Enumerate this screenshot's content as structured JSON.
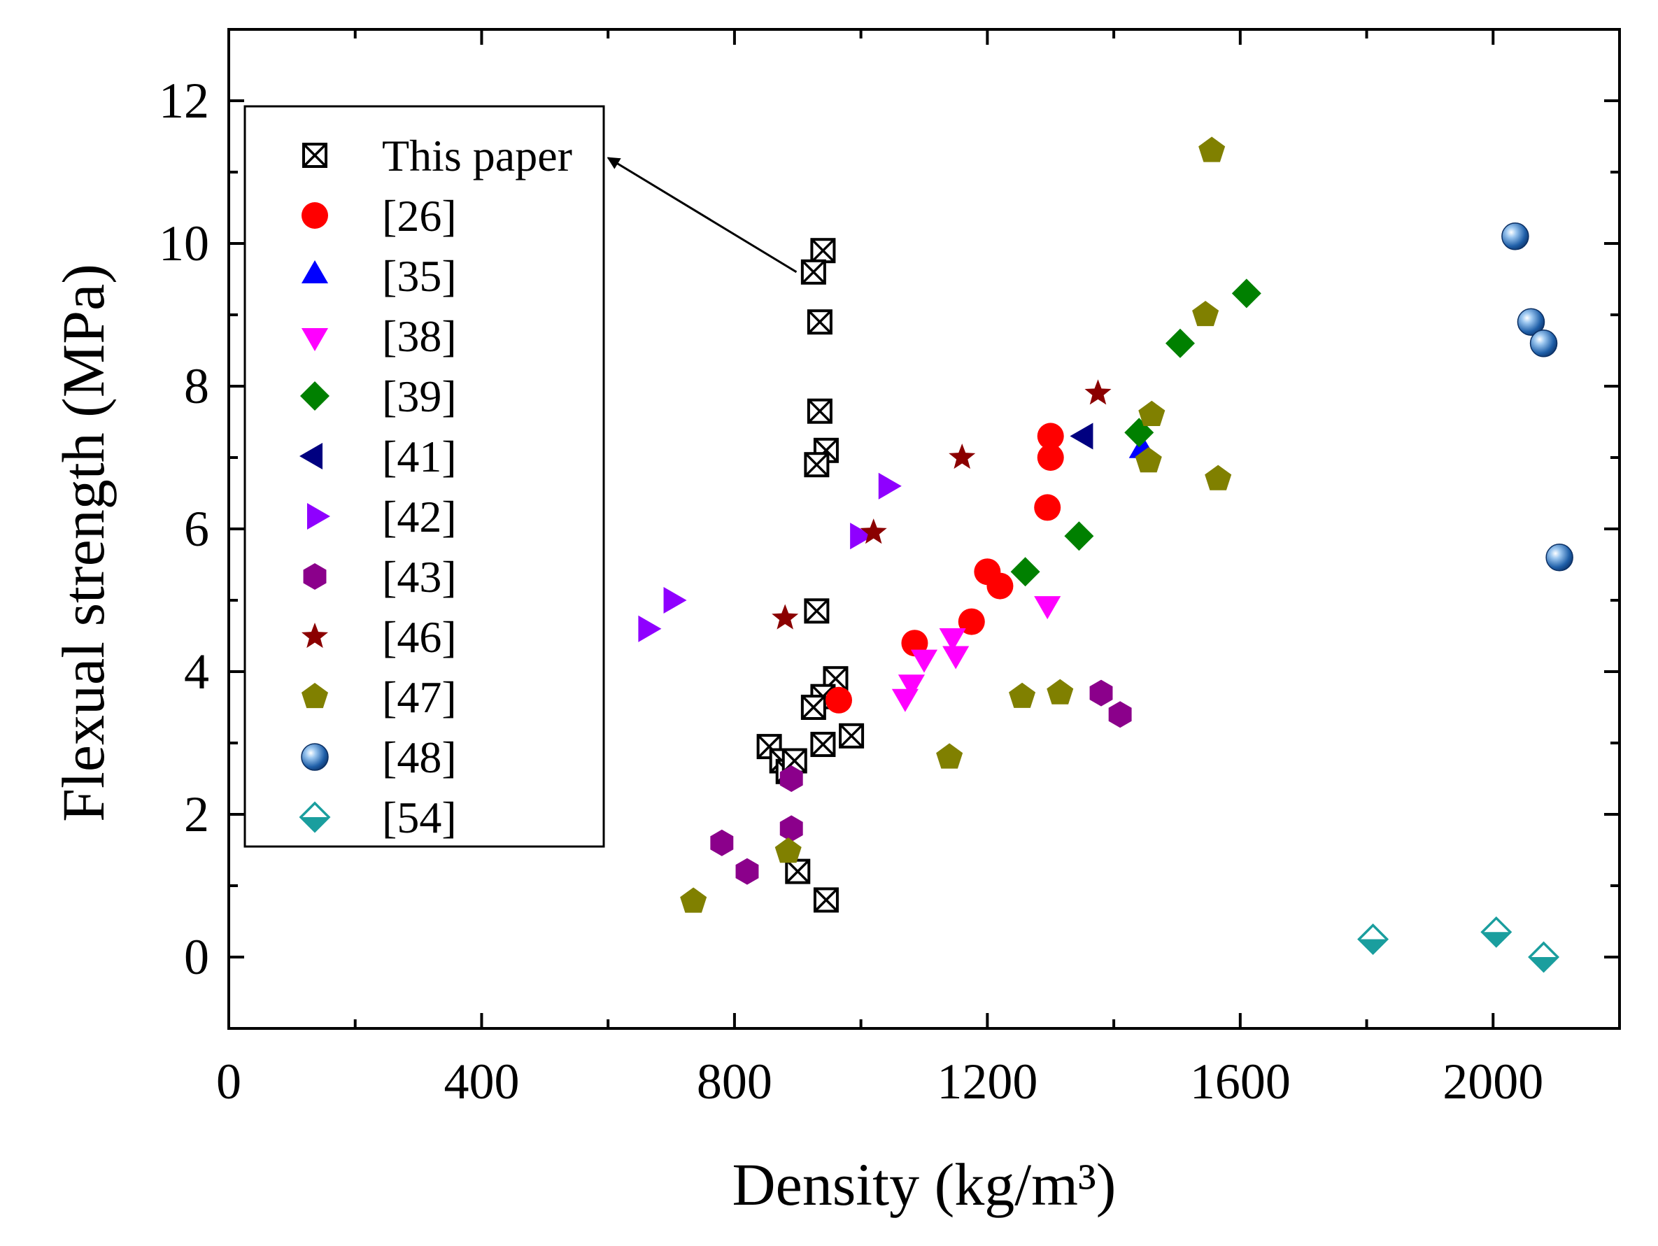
{
  "chart_data": {
    "type": "scatter",
    "xlabel": "Density (kg/m³)",
    "ylabel": "Flexual strength (MPa)",
    "xlim": [
      0,
      2200
    ],
    "ylim": [
      -1,
      13
    ],
    "xticks": [
      0,
      400,
      800,
      1200,
      1600,
      2000
    ],
    "yticks": [
      0,
      2,
      4,
      6,
      8,
      10,
      12
    ],
    "grid": false,
    "legend_position": "upper-left",
    "annotation": {
      "text": "This paper",
      "arrow_from": [
        600,
        11.2
      ],
      "arrow_to": [
        898,
        9.6
      ]
    },
    "series": [
      {
        "name": "This paper",
        "marker": "crossed-square",
        "color": "#000000",
        "x": [
          940,
          925,
          935,
          935,
          945,
          930,
          930,
          960,
          940,
          925,
          985,
          940,
          855,
          875,
          885,
          895,
          900,
          945
        ],
        "y": [
          9.9,
          9.6,
          8.9,
          7.65,
          7.1,
          6.9,
          4.85,
          3.9,
          3.65,
          3.5,
          3.1,
          2.98,
          2.95,
          2.75,
          2.6,
          2.75,
          1.2,
          0.8
        ]
      },
      {
        "name": "[26]",
        "marker": "circle",
        "color": "#ff0000",
        "x": [
          965,
          1085,
          1175,
          1200,
          1220,
          1295,
          1300,
          1300
        ],
        "y": [
          3.6,
          4.4,
          4.7,
          5.4,
          5.2,
          6.3,
          7.0,
          7.3
        ]
      },
      {
        "name": "[35]",
        "marker": "triangle-up",
        "color": "#0000ff",
        "x": [
          1445
        ],
        "y": [
          7.1
        ]
      },
      {
        "name": "[38]",
        "marker": "triangle-down",
        "color": "#ff00ff",
        "x": [
          1070,
          1080,
          1100,
          1145,
          1150,
          1295
        ],
        "y": [
          3.65,
          3.85,
          4.2,
          4.5,
          4.25,
          4.95
        ]
      },
      {
        "name": "[39]",
        "marker": "diamond",
        "color": "#008000",
        "x": [
          1260,
          1345,
          1440,
          1505,
          1610
        ],
        "y": [
          5.4,
          5.9,
          7.35,
          8.6,
          9.3
        ]
      },
      {
        "name": "[41]",
        "marker": "triangle-left",
        "color": "#000080",
        "x": [
          1355
        ],
        "y": [
          7.3
        ]
      },
      {
        "name": "[42]",
        "marker": "triangle-right",
        "color": "#8f00ff",
        "x": [
          660,
          700,
          995,
          1040
        ],
        "y": [
          4.6,
          5.0,
          5.9,
          6.6
        ]
      },
      {
        "name": "[43]",
        "marker": "hexagon",
        "color": "#8b008b",
        "x": [
          780,
          820,
          890,
          890,
          1380,
          1410
        ],
        "y": [
          1.6,
          1.2,
          2.5,
          1.8,
          3.7,
          3.4
        ]
      },
      {
        "name": "[46]",
        "marker": "star",
        "color": "#8b0000",
        "x": [
          880,
          1020,
          1160,
          1375
        ],
        "y": [
          4.75,
          5.95,
          7.0,
          7.9
        ]
      },
      {
        "name": "[47]",
        "marker": "pentagon",
        "color": "#808000",
        "x": [
          735,
          885,
          1140,
          1255,
          1315,
          1455,
          1460,
          1545,
          1555,
          1565
        ],
        "y": [
          0.78,
          1.48,
          2.8,
          3.65,
          3.7,
          6.95,
          7.6,
          9.0,
          11.3,
          6.7
        ]
      },
      {
        "name": "[48]",
        "marker": "sphere",
        "color": "#1f5fa8",
        "x": [
          2035,
          2060,
          2080,
          2105
        ],
        "y": [
          10.1,
          8.9,
          8.6,
          5.6
        ]
      },
      {
        "name": "[54]",
        "marker": "half-diamond",
        "color": "#1a9e9e",
        "x": [
          1810,
          2005,
          2080
        ],
        "y": [
          0.25,
          0.35,
          0.0
        ]
      }
    ]
  }
}
